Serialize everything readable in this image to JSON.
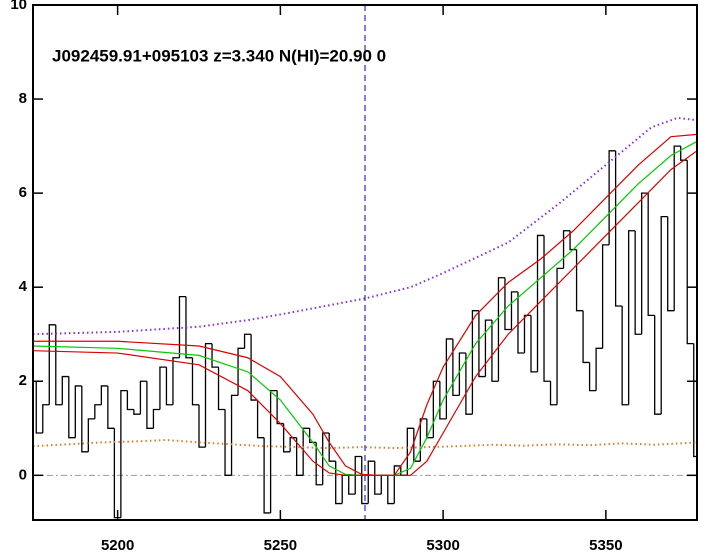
{
  "chart_data": {
    "type": "spectrum",
    "annotation": "J092459.91+095103 z=3.340 N(HI)=20.90 0",
    "xlim": [
      5174,
      5378
    ],
    "ylim": [
      -0.95,
      10
    ],
    "xticks": [
      5200,
      5250,
      5300,
      5350
    ],
    "yticks": [
      0,
      2,
      4,
      6,
      8,
      10
    ],
    "vline": {
      "x": 5276,
      "color": "#2a2ad0"
    },
    "hline": {
      "y": 0,
      "color": "#999999"
    },
    "series": [
      {
        "style": "step",
        "color": "#000000",
        "x": [
          5174,
          5176,
          5178,
          5180,
          5182,
          5184,
          5186,
          5188,
          5190,
          5192,
          5194,
          5196,
          5198,
          5200,
          5202,
          5204,
          5206,
          5208,
          5210,
          5212,
          5214,
          5216,
          5218,
          5220,
          5222,
          5224,
          5226,
          5228,
          5230,
          5232,
          5234,
          5236,
          5238,
          5240,
          5242,
          5244,
          5246,
          5248,
          5250,
          5252,
          5254,
          5256,
          5258,
          5260,
          5262,
          5264,
          5266,
          5268,
          5270,
          5272,
          5274,
          5276,
          5278,
          5280,
          5282,
          5284,
          5286,
          5288,
          5290,
          5292,
          5294,
          5296,
          5298,
          5300,
          5302,
          5304,
          5306,
          5308,
          5310,
          5312,
          5314,
          5316,
          5318,
          5320,
          5322,
          5324,
          5326,
          5328,
          5330,
          5332,
          5334,
          5336,
          5338,
          5340,
          5342,
          5344,
          5346,
          5348,
          5350,
          5352,
          5354,
          5356,
          5358,
          5360,
          5362,
          5364,
          5366,
          5368,
          5370,
          5372,
          5374,
          5376,
          5378
        ],
        "values": [
          2.0,
          0.9,
          1.5,
          3.2,
          1.5,
          2.1,
          0.8,
          1.9,
          0.5,
          1.2,
          1.5,
          1.9,
          1.0,
          -0.9,
          1.8,
          1.4,
          1.3,
          2.0,
          1.0,
          1.4,
          2.3,
          1.5,
          2.5,
          3.8,
          2.5,
          1.5,
          0.6,
          2.8,
          2.3,
          1.4,
          0.0,
          1.7,
          2.7,
          3.0,
          1.6,
          0.8,
          -0.8,
          1.8,
          1.1,
          0.5,
          0.8,
          0.0,
          1.0,
          0.7,
          -0.2,
          0.9,
          0.3,
          -0.6,
          0.0,
          -0.4,
          0.4,
          -0.6,
          0.3,
          -0.4,
          0.0,
          -0.6,
          0.2,
          0.0,
          1.0,
          0.3,
          1.2,
          0.8,
          2.0,
          1.2,
          2.9,
          1.7,
          2.6,
          1.3,
          3.5,
          2.1,
          3.3,
          2.0,
          4.2,
          3.1,
          3.9,
          2.6,
          3.4,
          2.2,
          5.1,
          2.0,
          1.5,
          4.4,
          5.2,
          4.8,
          3.5,
          2.4,
          1.8,
          2.7,
          4.9,
          6.9,
          3.6,
          1.5,
          5.2,
          3.0,
          6.0,
          3.4,
          1.3,
          5.5,
          3.5,
          7.0,
          6.7,
          2.8,
          0.4
        ]
      },
      {
        "style": "dotted",
        "color": "#e07a2a",
        "x": [
          5174,
          5185,
          5195,
          5205,
          5215,
          5225,
          5235,
          5245,
          5255,
          5265,
          5275,
          5285,
          5295,
          5305,
          5315,
          5325,
          5335,
          5345,
          5355,
          5365,
          5378
        ],
        "values": [
          0.62,
          0.66,
          0.7,
          0.72,
          0.75,
          0.7,
          0.66,
          0.62,
          0.6,
          0.58,
          0.6,
          0.58,
          0.6,
          0.62,
          0.65,
          0.63,
          0.66,
          0.64,
          0.68,
          0.65,
          0.7
        ]
      },
      {
        "style": "dotted",
        "color": "#8a2be2",
        "x": [
          5174,
          5200,
          5225,
          5240,
          5250,
          5260,
          5276,
          5290,
          5300,
          5320,
          5336,
          5350,
          5364,
          5372,
          5378
        ],
        "values": [
          3.0,
          3.05,
          3.16,
          3.3,
          3.42,
          3.55,
          3.76,
          4.0,
          4.3,
          4.95,
          5.8,
          6.6,
          7.4,
          7.6,
          7.55
        ]
      },
      {
        "style": "solid",
        "color": "#00cc00",
        "x": [
          5174,
          5200,
          5225,
          5240,
          5250,
          5260,
          5265,
          5270,
          5275,
          5285,
          5290,
          5295,
          5300,
          5310,
          5320,
          5330,
          5340,
          5350,
          5360,
          5370,
          5378
        ],
        "values": [
          2.75,
          2.7,
          2.55,
          2.2,
          1.6,
          0.7,
          0.2,
          0.02,
          0,
          0,
          0.15,
          0.8,
          1.6,
          2.8,
          3.6,
          4.2,
          4.8,
          5.5,
          6.2,
          6.8,
          7.1
        ]
      },
      {
        "style": "solid",
        "color": "#dd0000",
        "x": [
          5174,
          5200,
          5225,
          5240,
          5250,
          5260,
          5265,
          5270,
          5275,
          5280,
          5285,
          5290,
          5295,
          5300,
          5310,
          5320,
          5330,
          5340,
          5350,
          5360,
          5370,
          5378
        ],
        "values": [
          2.85,
          2.85,
          2.75,
          2.5,
          2.1,
          1.3,
          0.7,
          0.2,
          0.02,
          0,
          0,
          0.5,
          1.5,
          2.3,
          3.4,
          4.1,
          4.6,
          5.2,
          5.9,
          6.6,
          7.2,
          7.25
        ]
      },
      {
        "style": "solid",
        "color": "#dd0000",
        "x": [
          5174,
          5200,
          5225,
          5240,
          5250,
          5260,
          5265,
          5270,
          5290,
          5295,
          5300,
          5310,
          5320,
          5330,
          5340,
          5350,
          5360,
          5370,
          5378
        ],
        "values": [
          2.65,
          2.6,
          2.35,
          1.8,
          1.1,
          0.3,
          0.05,
          0,
          0,
          0.3,
          0.9,
          2.1,
          3.0,
          3.7,
          4.4,
          5.1,
          5.8,
          6.5,
          6.9
        ]
      }
    ]
  }
}
